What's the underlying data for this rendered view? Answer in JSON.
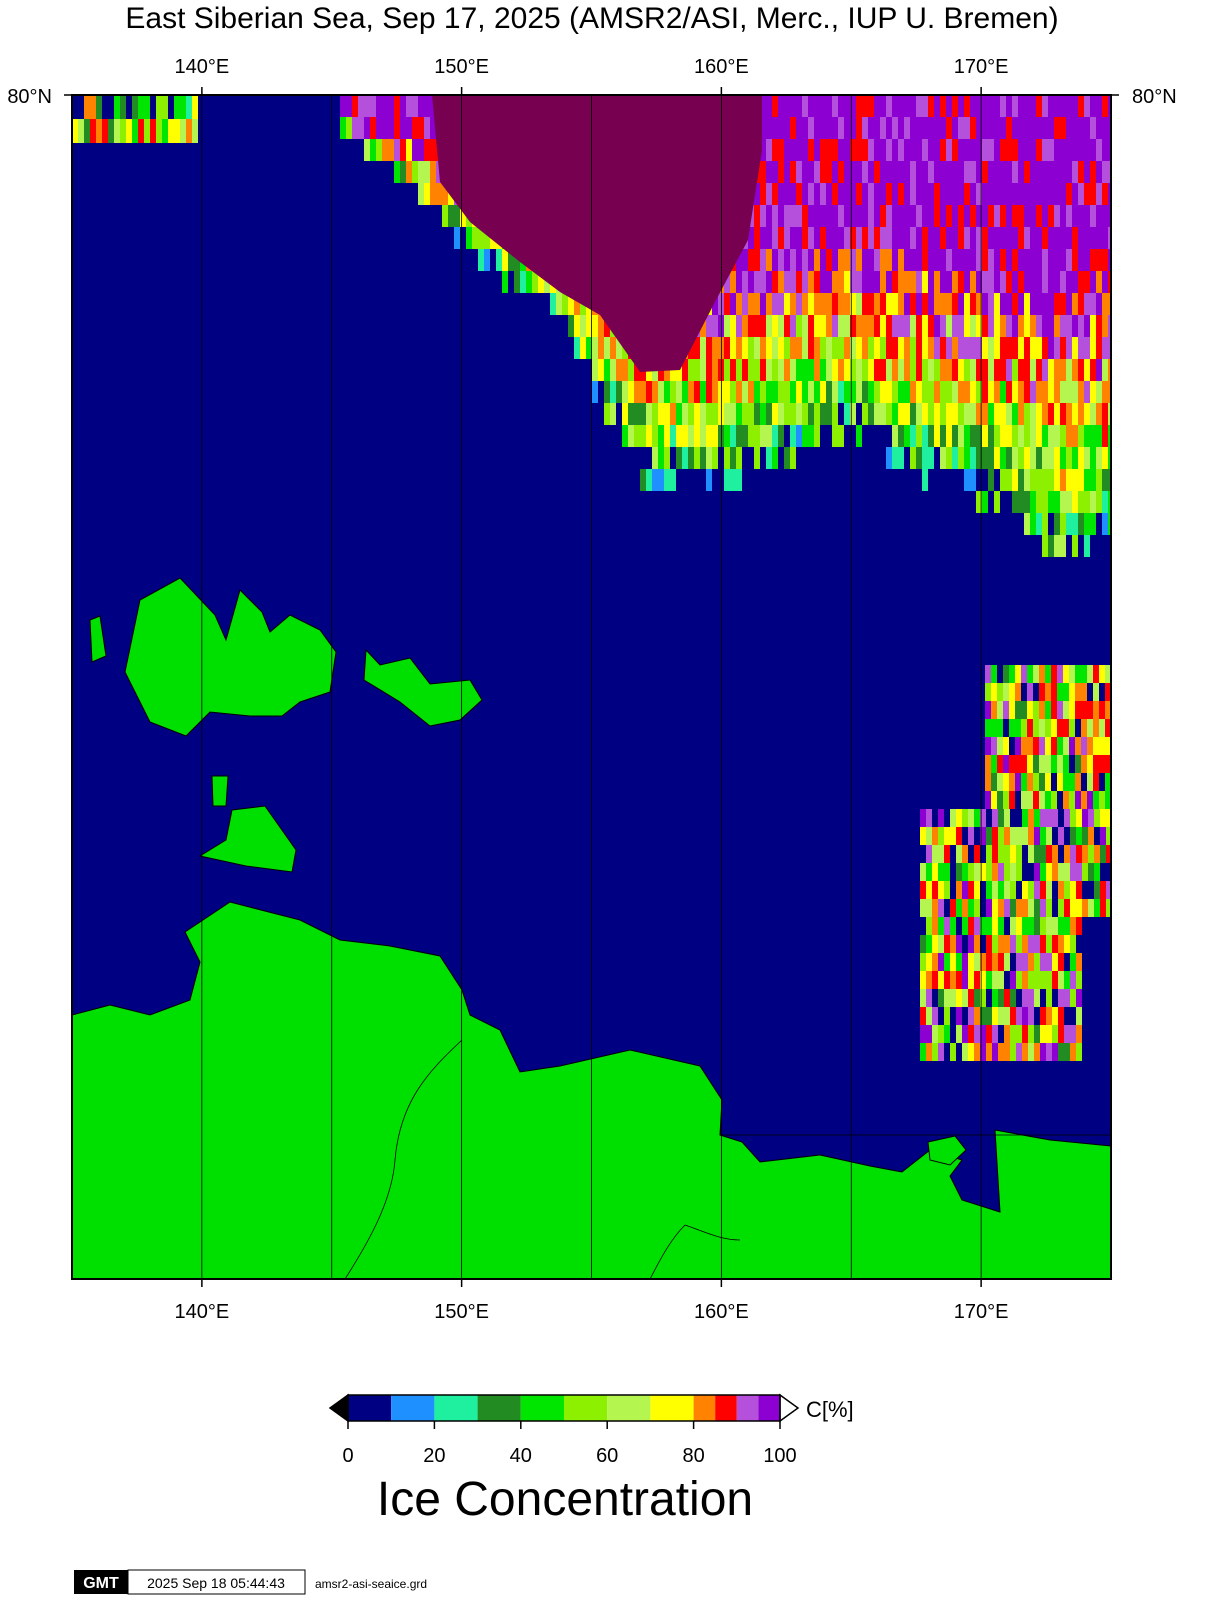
{
  "title": "East Siberian Sea, Sep 17, 2025 (AMSR2/ASI, Merc., IUP U. Bremen)",
  "map": {
    "lonlim": [
      135,
      175
    ],
    "lon_ticks": [
      {
        "value": 140,
        "label": "140°E"
      },
      {
        "value": 150,
        "label": "150°E"
      },
      {
        "value": 160,
        "label": "160°E"
      },
      {
        "value": 170,
        "label": "170°E"
      }
    ],
    "lon_grid": [
      140,
      145,
      150,
      155,
      160,
      165,
      170
    ],
    "lat_ticks": [
      {
        "value": 80,
        "label": "80°N"
      }
    ]
  },
  "colorbar": {
    "label": "C[%]",
    "title": "Ice Concentration",
    "lim": [
      0,
      100
    ],
    "ticks": [
      0,
      20,
      40,
      60,
      80,
      100
    ],
    "bounds": [
      0,
      10,
      20,
      30,
      40,
      50,
      60,
      70,
      80,
      85,
      90,
      95,
      100
    ],
    "colors": [
      "#000082",
      "#1e90ff",
      "#1ef0a0",
      "#228b22",
      "#00e600",
      "#8cf000",
      "#b4f550",
      "#ffff00",
      "#ff8200",
      "#ff0000",
      "#b450dc",
      "#8c00d2"
    ],
    "below_color": "#000000",
    "above_color": "#ffffff"
  },
  "footer": {
    "logo": "GMT",
    "timestamp": "2025 Sep 18 05:44:43",
    "file": "amsr2-asi-seaice.grd"
  }
}
